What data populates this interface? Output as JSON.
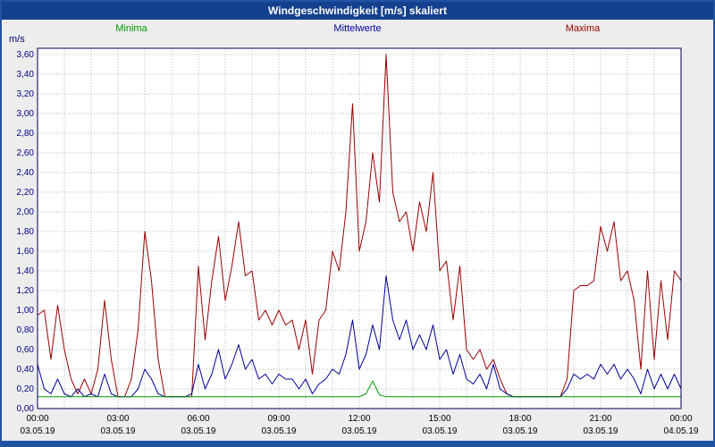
{
  "window": {
    "title": "Windgeschwindigkeit [m/s] skaliert"
  },
  "legend": [
    {
      "label": "Minima",
      "color": "#009900"
    },
    {
      "label": "Mittelwerte",
      "color": "#000099"
    },
    {
      "label": "Maxima",
      "color": "#990000"
    }
  ],
  "axis": {
    "unit_label": "m/s",
    "y_ticks": [
      "0,00",
      "0,20",
      "0,40",
      "0,60",
      "0,80",
      "1,00",
      "1,20",
      "1,40",
      "1,60",
      "1,80",
      "2,00",
      "2,20",
      "2,40",
      "2,60",
      "2,80",
      "3,00",
      "3,20",
      "3,40",
      "3,60"
    ],
    "x_ticks": [
      {
        "time": "00:00",
        "date": "03.05.19",
        "hour": 0
      },
      {
        "time": "03:00",
        "date": "03.05.19",
        "hour": 3
      },
      {
        "time": "06:00",
        "date": "03.05.19",
        "hour": 6
      },
      {
        "time": "09:00",
        "date": "03.05.19",
        "hour": 9
      },
      {
        "time": "12:00",
        "date": "03.05.19",
        "hour": 12
      },
      {
        "time": "15:00",
        "date": "03.05.19",
        "hour": 15
      },
      {
        "time": "18:00",
        "date": "03.05.19",
        "hour": 18
      },
      {
        "time": "21:00",
        "date": "03.05.19",
        "hour": 21
      },
      {
        "time": "00:00",
        "date": "04.05.19",
        "hour": 24
      }
    ]
  },
  "chart_data": {
    "type": "line",
    "title": "Windgeschwindigkeit [m/s] skaliert",
    "ylabel": "m/s",
    "ylim": [
      0,
      3.6
    ],
    "y_tick_step": 0.2,
    "xlim_hours": [
      0,
      24
    ],
    "x_tick_step_hours": 3,
    "x_note": "values sampled every 15 minutes from 00:00 03.05.19 to 00:00 04.05.19",
    "grid": true,
    "legend_position": "top",
    "series": [
      {
        "name": "Maxima",
        "color": "#990000",
        "values": [
          0.95,
          1.0,
          0.5,
          1.05,
          0.6,
          0.3,
          0.15,
          0.3,
          0.15,
          0.4,
          1.1,
          0.5,
          0.12,
          0.12,
          0.3,
          0.8,
          1.8,
          1.3,
          0.5,
          0.12,
          0.12,
          0.12,
          0.12,
          0.12,
          1.45,
          0.7,
          1.3,
          1.75,
          1.1,
          1.45,
          1.9,
          1.35,
          1.4,
          0.9,
          1.0,
          0.85,
          1.0,
          0.85,
          0.9,
          0.6,
          0.9,
          0.35,
          0.9,
          1.0,
          1.6,
          1.4,
          2.0,
          3.1,
          1.6,
          1.9,
          2.6,
          2.1,
          3.6,
          2.2,
          1.9,
          2.0,
          1.6,
          2.1,
          1.8,
          2.4,
          1.4,
          1.5,
          0.9,
          1.45,
          0.6,
          0.5,
          0.6,
          0.4,
          0.5,
          0.3,
          0.15,
          0.12,
          0.12,
          0.12,
          0.12,
          0.12,
          0.12,
          0.12,
          0.12,
          0.3,
          1.2,
          1.25,
          1.25,
          1.3,
          1.85,
          1.6,
          1.9,
          1.3,
          1.4,
          1.1,
          0.4,
          1.4,
          0.5,
          1.3,
          0.7,
          1.4,
          1.3
        ]
      },
      {
        "name": "Mittelwerte",
        "color": "#000099",
        "values": [
          0.45,
          0.2,
          0.15,
          0.3,
          0.15,
          0.12,
          0.2,
          0.12,
          0.15,
          0.12,
          0.35,
          0.15,
          0.12,
          0.12,
          0.12,
          0.2,
          0.4,
          0.3,
          0.15,
          0.12,
          0.12,
          0.12,
          0.12,
          0.15,
          0.45,
          0.2,
          0.35,
          0.6,
          0.3,
          0.45,
          0.65,
          0.4,
          0.5,
          0.3,
          0.35,
          0.25,
          0.35,
          0.3,
          0.3,
          0.2,
          0.3,
          0.15,
          0.25,
          0.3,
          0.4,
          0.35,
          0.55,
          0.9,
          0.4,
          0.55,
          0.85,
          0.6,
          1.35,
          0.9,
          0.7,
          0.9,
          0.6,
          0.75,
          0.6,
          0.85,
          0.5,
          0.6,
          0.35,
          0.55,
          0.3,
          0.25,
          0.35,
          0.2,
          0.45,
          0.2,
          0.15,
          0.12,
          0.12,
          0.12,
          0.12,
          0.12,
          0.12,
          0.12,
          0.12,
          0.2,
          0.35,
          0.3,
          0.35,
          0.3,
          0.45,
          0.35,
          0.45,
          0.3,
          0.4,
          0.3,
          0.15,
          0.4,
          0.2,
          0.35,
          0.2,
          0.35,
          0.2
        ]
      },
      {
        "name": "Minima",
        "color": "#009900",
        "values": [
          0.12,
          0.12,
          0.12,
          0.12,
          0.12,
          0.12,
          0.12,
          0.12,
          0.12,
          0.12,
          0.12,
          0.12,
          0.12,
          0.12,
          0.12,
          0.12,
          0.12,
          0.12,
          0.12,
          0.12,
          0.12,
          0.12,
          0.12,
          0.12,
          0.12,
          0.12,
          0.12,
          0.12,
          0.12,
          0.12,
          0.12,
          0.12,
          0.12,
          0.12,
          0.12,
          0.12,
          0.12,
          0.12,
          0.12,
          0.12,
          0.12,
          0.12,
          0.12,
          0.12,
          0.12,
          0.12,
          0.12,
          0.12,
          0.12,
          0.15,
          0.28,
          0.14,
          0.12,
          0.12,
          0.12,
          0.12,
          0.12,
          0.12,
          0.12,
          0.12,
          0.12,
          0.12,
          0.12,
          0.12,
          0.12,
          0.12,
          0.12,
          0.12,
          0.12,
          0.12,
          0.12,
          0.12,
          0.12,
          0.12,
          0.12,
          0.12,
          0.12,
          0.12,
          0.12,
          0.12,
          0.12,
          0.12,
          0.12,
          0.12,
          0.12,
          0.12,
          0.12,
          0.12,
          0.12,
          0.12,
          0.12,
          0.12,
          0.12,
          0.12,
          0.12,
          0.12,
          0.12
        ]
      }
    ]
  }
}
